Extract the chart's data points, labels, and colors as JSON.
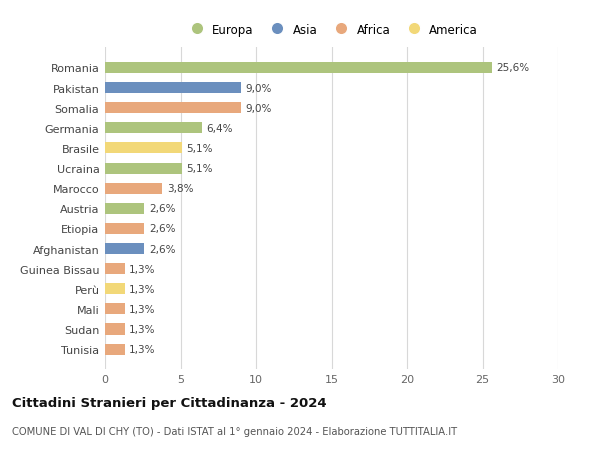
{
  "categories": [
    "Romania",
    "Pakistan",
    "Somalia",
    "Germania",
    "Brasile",
    "Ucraina",
    "Marocco",
    "Austria",
    "Etiopia",
    "Afghanistan",
    "Guinea Bissau",
    "Perù",
    "Mali",
    "Sudan",
    "Tunisia"
  ],
  "values": [
    25.6,
    9.0,
    9.0,
    6.4,
    5.1,
    5.1,
    3.8,
    2.6,
    2.6,
    2.6,
    1.3,
    1.3,
    1.3,
    1.3,
    1.3
  ],
  "labels": [
    "25,6%",
    "9,0%",
    "9,0%",
    "6,4%",
    "5,1%",
    "5,1%",
    "3,8%",
    "2,6%",
    "2,6%",
    "2,6%",
    "1,3%",
    "1,3%",
    "1,3%",
    "1,3%",
    "1,3%"
  ],
  "colors": [
    "#adc47d",
    "#6b8fbe",
    "#e8a87c",
    "#adc47d",
    "#f2d878",
    "#adc47d",
    "#e8a87c",
    "#adc47d",
    "#e8a87c",
    "#6b8fbe",
    "#e8a87c",
    "#f2d878",
    "#e8a87c",
    "#e8a87c",
    "#e8a87c"
  ],
  "legend_labels": [
    "Europa",
    "Asia",
    "Africa",
    "America"
  ],
  "legend_colors": [
    "#adc47d",
    "#6b8fbe",
    "#e8a87c",
    "#f2d878"
  ],
  "title": "Cittadini Stranieri per Cittadinanza - 2024",
  "subtitle": "COMUNE DI VAL DI CHY (TO) - Dati ISTAT al 1° gennaio 2024 - Elaborazione TUTTITALIA.IT",
  "xlim": [
    0,
    30
  ],
  "xticks": [
    0,
    5,
    10,
    15,
    20,
    25,
    30
  ],
  "background_color": "#ffffff",
  "grid_color": "#d8d8d8"
}
